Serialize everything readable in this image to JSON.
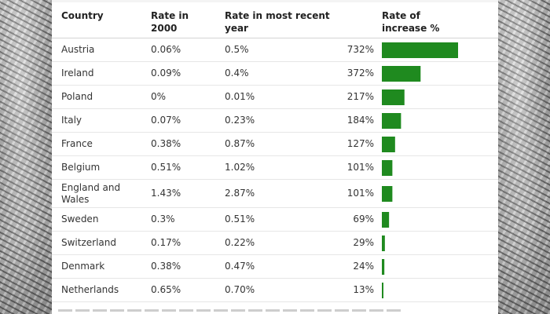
{
  "chart_data": {
    "type": "table",
    "headers": {
      "country": "Country",
      "rate2000": "Rate in 2000",
      "recent": "Rate in most recent year",
      "increase": "Rate of increase %"
    },
    "rows": [
      {
        "country": "Austria",
        "rate2000": "0.06%",
        "recent": "0.5%",
        "increase": "732%",
        "value": 732
      },
      {
        "country": "Ireland",
        "rate2000": "0.09%",
        "recent": "0.4%",
        "increase": "372%",
        "value": 372
      },
      {
        "country": "Poland",
        "rate2000": "0%",
        "recent": "0.01%",
        "increase": "217%",
        "value": 217
      },
      {
        "country": "Italy",
        "rate2000": "0.07%",
        "recent": "0.23%",
        "increase": "184%",
        "value": 184
      },
      {
        "country": "France",
        "rate2000": "0.38%",
        "recent": "0.87%",
        "increase": "127%",
        "value": 127
      },
      {
        "country": "Belgium",
        "rate2000": "0.51%",
        "recent": "1.02%",
        "increase": "101%",
        "value": 101
      },
      {
        "country": "England and Wales",
        "rate2000": "1.43%",
        "recent": "2.87%",
        "increase": "101%",
        "value": 101
      },
      {
        "country": "Sweden",
        "rate2000": "0.3%",
        "recent": "0.51%",
        "increase": "69%",
        "value": 69
      },
      {
        "country": "Switzerland",
        "rate2000": "0.17%",
        "recent": "0.22%",
        "increase": "29%",
        "value": 29
      },
      {
        "country": "Denmark",
        "rate2000": "0.38%",
        "recent": "0.47%",
        "increase": "24%",
        "value": 24
      },
      {
        "country": "Netherlands",
        "rate2000": "0.65%",
        "recent": "0.70%",
        "increase": "13%",
        "value": 13
      }
    ],
    "bar_max": 732,
    "bar_color": "#1f8a1f"
  }
}
